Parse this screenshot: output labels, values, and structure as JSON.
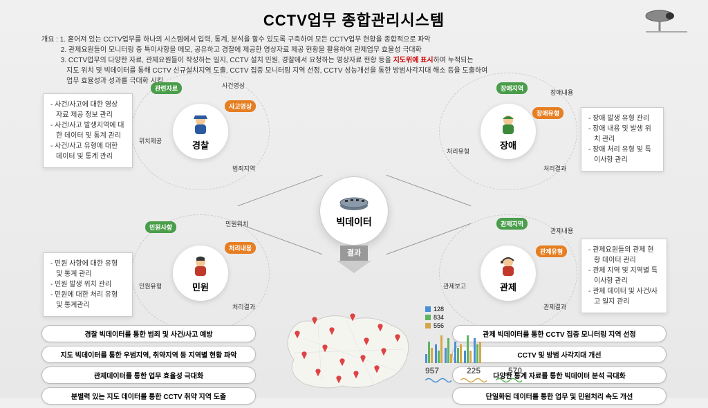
{
  "title": "CCTV업무 종합관리시스템",
  "overview": {
    "label": "개요 :",
    "line1": "1. 흩어져 있는 CCTV업무를 하나의 시스템에서 입력, 통계, 분석을 할수 있도록 구축하여 모든 CCTV업무 현황을 종합적으로 파악",
    "line2": "2. 관제요원들이 모니터링 중 특이사항을 메모, 공유하고 경찰에 제공한 영상자료 제공 현황을 활용하여 관제업무 효율성 극대화",
    "line3a": "3. CCTV업무의 다양한 자료, 관제요원들이 작성하는 일지, CCTV 설치 민원, 경찰에서 요청하는 영상자료 현황 등을 ",
    "line3_red": "지도위에 표시",
    "line3b": "하여 누적되는",
    "line4": "지도 위치 및 빅데이터를 통해 CCTV 신규설치지역 도출, CCTV 집중 모니터링 지역 선정, CCTV 성능개선을 통한 방범사각지대 해소 등을 도출하여",
    "line5": "업무 효율성과 성과를 극대화 시킴"
  },
  "center": {
    "label": "빅데이터"
  },
  "result_label": "결과",
  "nodes": {
    "police": {
      "label": "경찰",
      "color": "#2c5aa0",
      "tags": {
        "t1": "관련자료",
        "t2": "사건영상",
        "t3": "사고영상",
        "t4": "위치제공",
        "t5": "범죄지역"
      },
      "info": [
        "사건/사고에 대한 영상 자료 제공 정보 관리",
        "사건/사고 발생지역에 대한 데이터 및 통계 관리",
        "사건/사고 유형에 대한 데이터 및 통계 관리"
      ]
    },
    "fault": {
      "label": "장애",
      "color": "#3a8a3a",
      "tags": {
        "t1": "장애지역",
        "t2": "장애내용",
        "t3": "장애유형",
        "t4": "처리유형",
        "t5": "처리결과"
      },
      "info": [
        "장애 발생 유형 관리",
        "장애 내용 및 발생 위치 관리",
        "장애 처리 유형 및 특이사항 관리"
      ]
    },
    "complaint": {
      "label": "민원",
      "color": "#c0392b",
      "tags": {
        "t1": "민원사항",
        "t2": "민원위치",
        "t3": "처리내용",
        "t4": "민원유형",
        "t5": "처리결과"
      },
      "info": [
        "민원 사항에 대한 유형 및 통계 관리",
        "민원 발생 위치 관리",
        "민원에 대한 처리 유형 및 통계관리"
      ]
    },
    "control": {
      "label": "관제",
      "color": "#c0392b",
      "tags": {
        "t1": "관제지역",
        "t2": "관제내용",
        "t3": "관제유형",
        "t4": "관제보고",
        "t5": "관제결과"
      },
      "info": [
        "관제요원들의 관제 현황 데이터 관리",
        "관제 지역 및 지역별 특이사항 관리",
        "관제 데이터 및 사건/사고 일지 관리"
      ]
    }
  },
  "pills_left": [
    "경찰 빅데이터를 통한 범죄 및 사건/사고 예방",
    "지도 빅데이터를 통한 우범지역, 취약지역 등 지역별 현황 파악",
    "관제데이터를 통한 업무 효율성 극대화",
    "분별력 있는 지도 데이터를 통한 CCTV 취약 지역 도출"
  ],
  "pills_right": [
    "관제 빅데이터를 통한 CCTV 집중 모니터링 지역 선정",
    "CCTV 및 방범 사각지대 개선",
    "다양한 통계 자료를 통한 빅데이터 분석 극대화",
    "단일화된 데이터를 통한 업무 및 민원처리 속도 개선"
  ],
  "stats": {
    "legend": [
      {
        "value": "128",
        "color": "#4a8fd4"
      },
      {
        "value": "834",
        "color": "#5fb35f"
      },
      {
        "value": "556",
        "color": "#d4a84a"
      }
    ],
    "bar_colors": [
      "#4a8fd4",
      "#5fb35f",
      "#d4a84a"
    ],
    "bar_groups": [
      [
        0.3,
        0.7,
        0.5
      ],
      [
        0.6,
        0.4,
        0.9
      ],
      [
        0.5,
        0.8,
        0.3
      ],
      [
        0.7,
        0.5,
        0.6
      ],
      [
        0.4,
        0.9,
        0.4
      ],
      [
        0.8,
        0.6,
        0.7
      ]
    ],
    "nums": [
      "957",
      "225",
      "570"
    ],
    "wave_colors": [
      "#4a8fd4",
      "#d4a84a",
      "#5fb35f"
    ]
  },
  "map": {
    "pin_color": "#d44",
    "positions": [
      [
        30,
        50
      ],
      [
        55,
        30
      ],
      [
        80,
        45
      ],
      [
        110,
        25
      ],
      [
        130,
        60
      ],
      [
        150,
        40
      ],
      [
        40,
        80
      ],
      [
        70,
        70
      ],
      [
        95,
        90
      ],
      [
        125,
        85
      ],
      [
        155,
        75
      ],
      [
        175,
        55
      ],
      [
        60,
        105
      ],
      [
        90,
        115
      ],
      [
        115,
        108
      ],
      [
        145,
        100
      ]
    ]
  }
}
